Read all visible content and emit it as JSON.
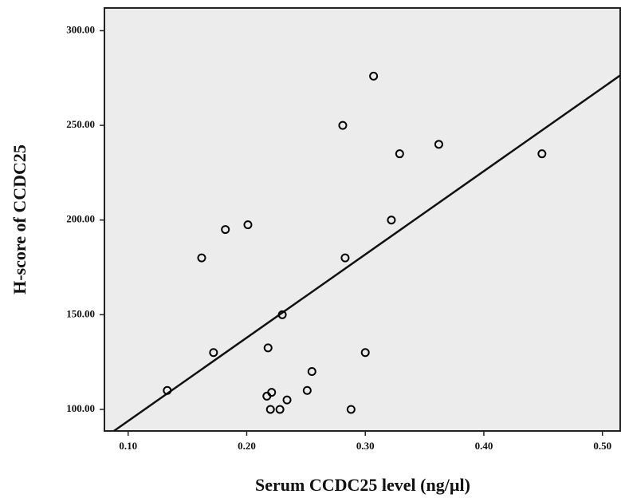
{
  "chart_data": {
    "type": "scatter",
    "x_label": "Serum CCDC25 level (ng/µl)",
    "y_label": "H-score of CCDC25",
    "x": [
      0.133,
      0.162,
      0.172,
      0.182,
      0.201,
      0.217,
      0.221,
      0.22,
      0.218,
      0.228,
      0.23,
      0.234,
      0.251,
      0.255,
      0.281,
      0.283,
      0.288,
      0.3,
      0.307,
      0.322,
      0.329,
      0.362,
      0.449
    ],
    "values": [
      110,
      180,
      130,
      195,
      197.5,
      107,
      109,
      100,
      132.5,
      100,
      150,
      105,
      110,
      120,
      250,
      180,
      100,
      130,
      276,
      200,
      235,
      240,
      235
    ],
    "color": "#000000",
    "fit": {
      "x": [
        0.088,
        0.515
      ],
      "y": [
        88.6,
        276.4
      ]
    },
    "xlim": [
      0.08,
      0.515
    ],
    "ylim": [
      88.6,
      312
    ],
    "xticks": [
      {
        "value": 0.1,
        "label": "0.10"
      },
      {
        "value": 0.2,
        "label": "0.20"
      },
      {
        "value": 0.3,
        "label": "0.30"
      },
      {
        "value": 0.4,
        "label": "0.40"
      },
      {
        "value": 0.5,
        "label": "0.50"
      }
    ],
    "yticks": [
      {
        "value": 100,
        "label": "100.00"
      },
      {
        "value": 150,
        "label": "150.00"
      },
      {
        "value": 200,
        "label": "200.00"
      },
      {
        "value": 250,
        "label": "250.00"
      },
      {
        "value": 300,
        "label": "300.00"
      }
    ]
  }
}
